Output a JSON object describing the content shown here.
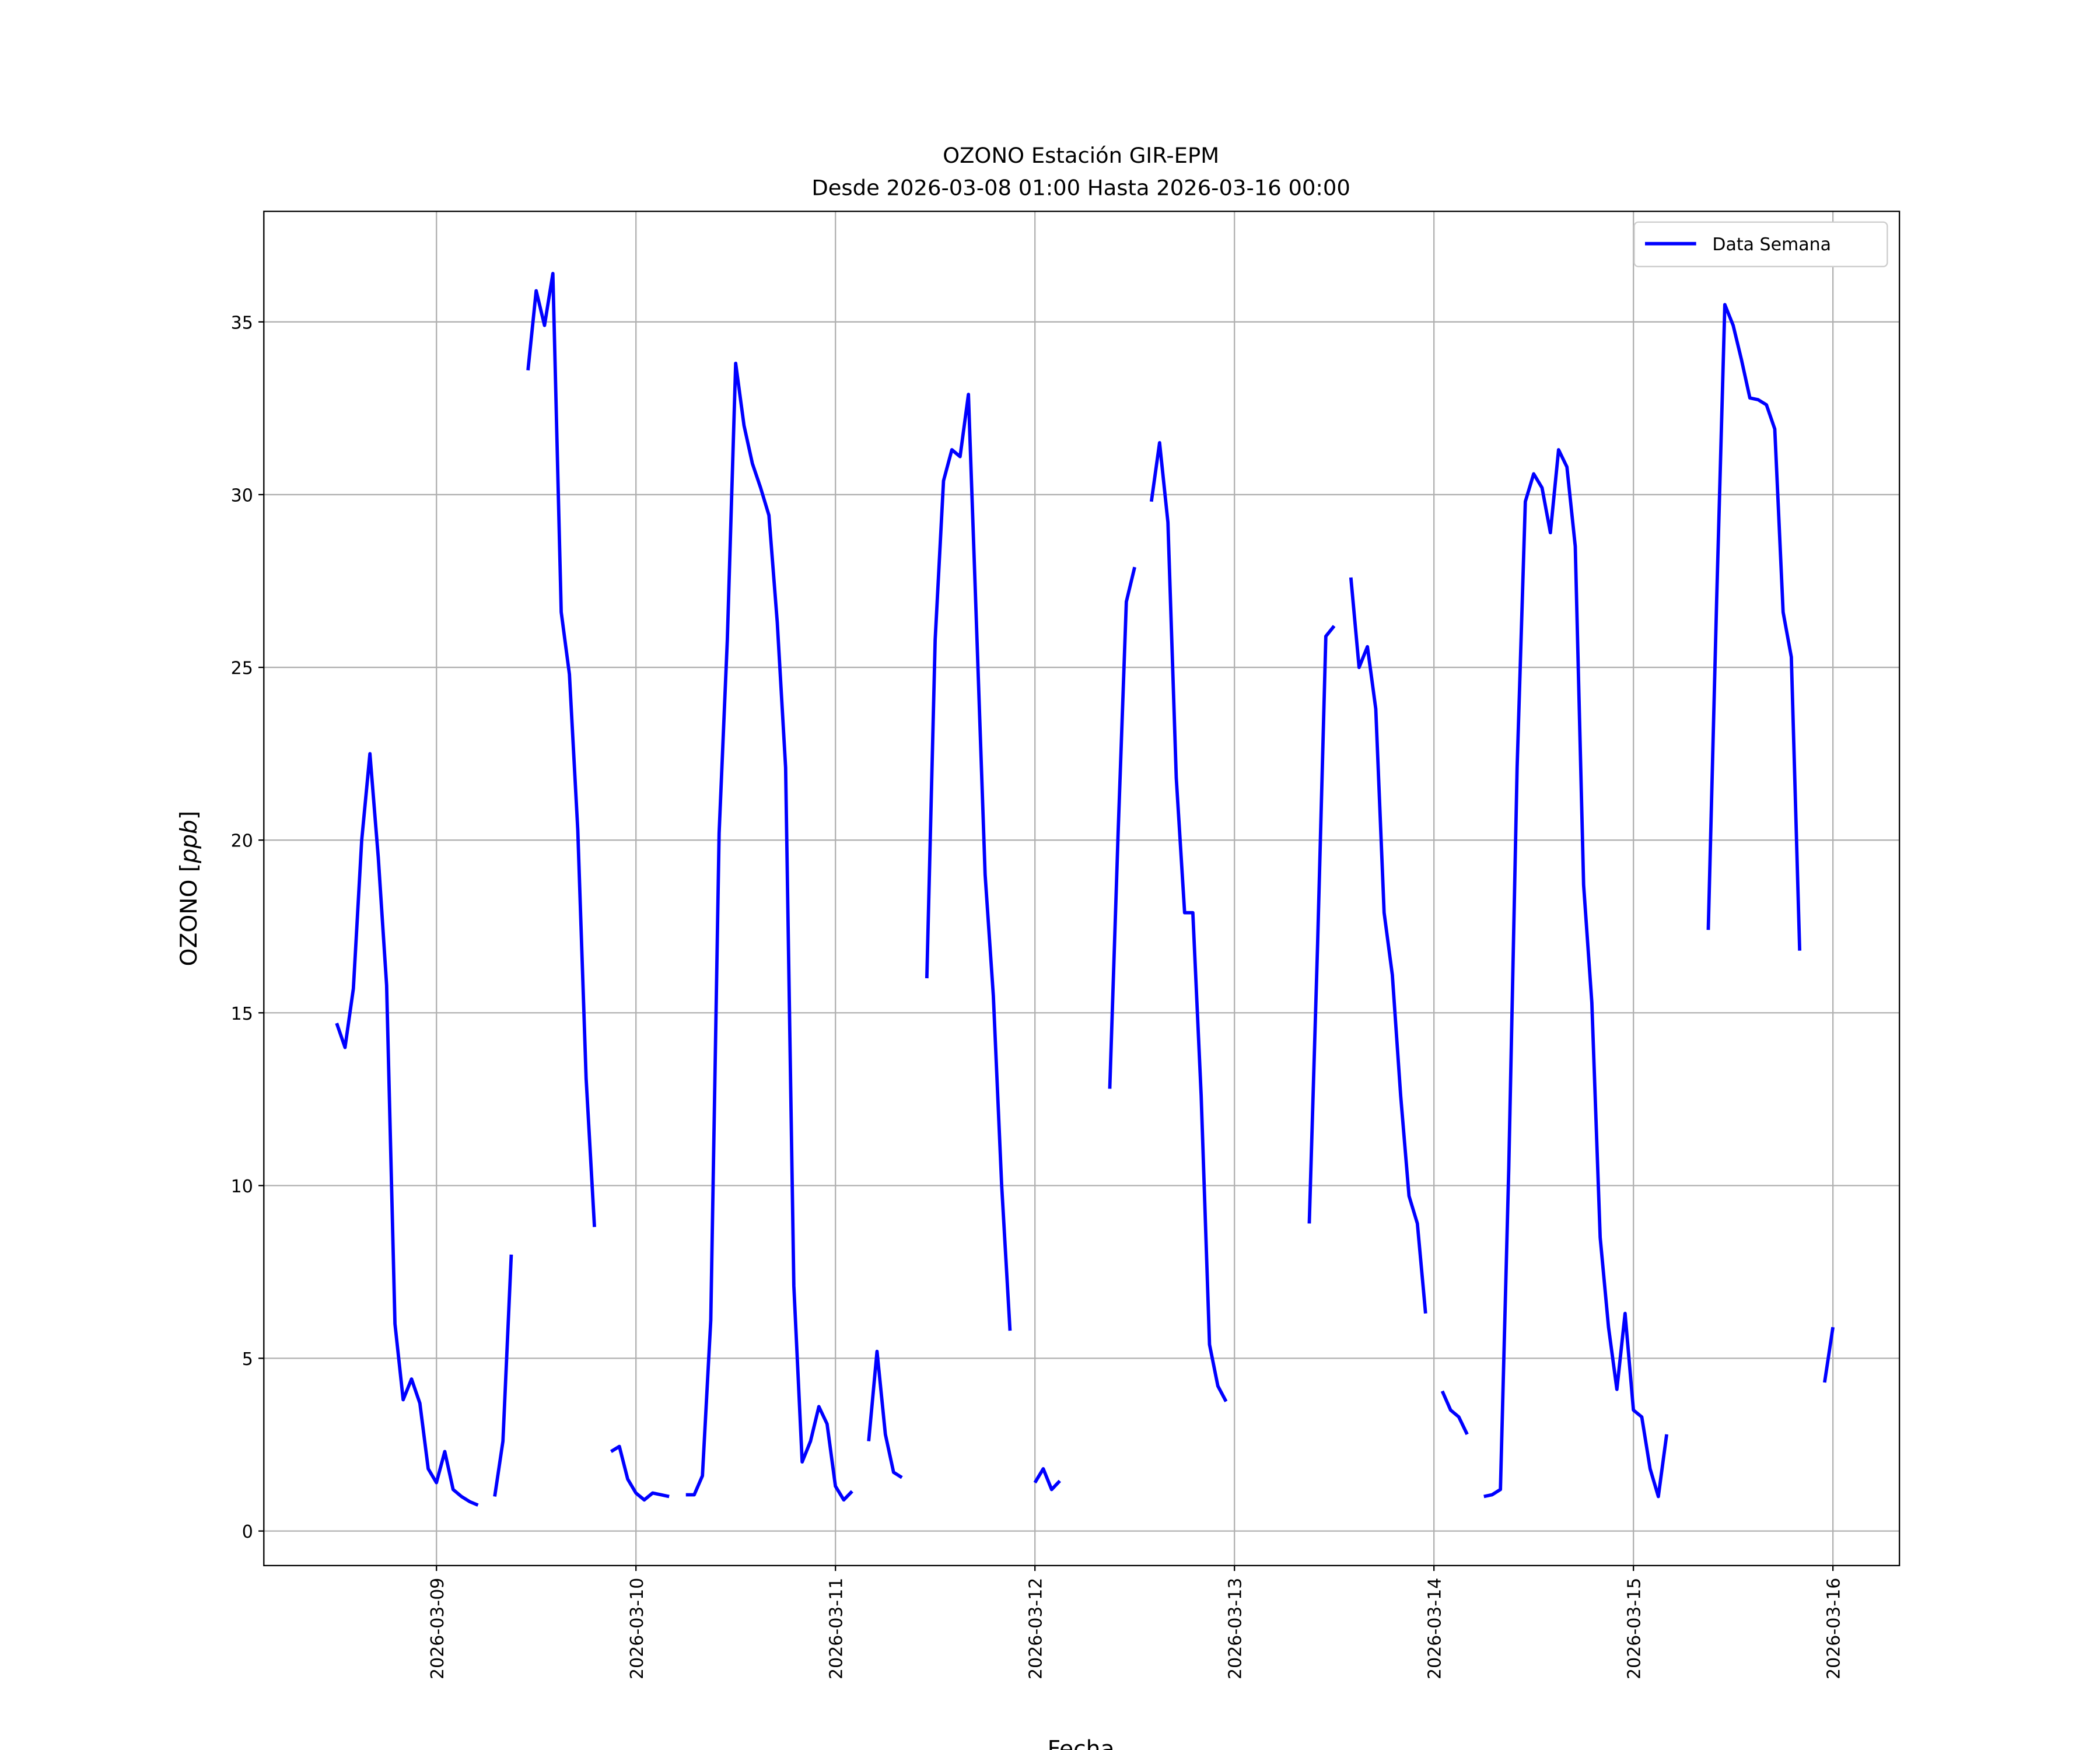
{
  "chart_data": {
    "type": "line",
    "title": "OZONO Estación GIR-EPM",
    "subtitle": "Desde 2026-03-08 01:00 Hasta 2026-03-16 00:00",
    "xlabel": "Fecha",
    "ylabel": "OZONO [ppb]",
    "ylim": [
      -1,
      38.2
    ],
    "xlim": [
      "2026-03-08T03:14",
      "2026-03-16T08:00"
    ],
    "yticks": [
      0,
      5,
      10,
      15,
      20,
      25,
      30,
      35
    ],
    "xticks": [
      "2026-03-09",
      "2026-03-10",
      "2026-03-11",
      "2026-03-12",
      "2026-03-13",
      "2026-03-14",
      "2026-03-15",
      "2026-03-16"
    ],
    "grid": true,
    "legend": "top-right",
    "colors": {
      "series": "#0000ff",
      "grid": "#b0b0b0"
    },
    "series": [
      {
        "name": "Data Semana",
        "x_start": "2026-03-08T12:00",
        "x_step_hours": 1,
        "y": [
          14.7,
          14.0,
          15.7,
          20.0,
          22.5,
          19.5,
          15.8,
          6.0,
          3.8,
          4.4,
          3.7,
          1.8,
          1.4,
          2.3,
          1.2,
          1.0,
          0.85,
          0.75,
          null,
          1.0,
          2.6,
          8.0,
          null,
          33.6,
          35.9,
          34.9,
          36.4,
          26.6,
          24.8,
          20.3,
          13.1,
          8.8,
          null,
          2.3,
          2.45,
          1.5,
          1.1,
          0.9,
          1.1,
          1.05,
          1.0,
          null,
          1.05,
          1.05,
          1.6,
          6.1,
          20.2,
          25.8,
          33.8,
          32.0,
          30.9,
          30.2,
          29.4,
          26.3,
          22.1,
          7.1,
          2.0,
          2.6,
          3.6,
          3.1,
          1.3,
          0.9,
          1.15,
          null,
          2.6,
          5.2,
          2.8,
          1.7,
          1.55,
          null,
          null,
          16.0,
          25.8,
          30.4,
          31.3,
          31.1,
          32.9,
          26.0,
          19.0,
          15.5,
          10.0,
          5.8,
          null,
          null,
          1.4,
          1.8,
          1.2,
          1.45,
          null,
          null,
          null,
          null,
          null,
          12.8,
          20.2,
          26.9,
          27.9,
          null,
          29.8,
          31.5,
          29.2,
          21.8,
          17.9,
          17.9,
          12.6,
          5.4,
          4.2,
          3.75,
          null,
          null,
          null,
          null,
          null,
          null,
          null,
          null,
          null,
          8.9,
          17.0,
          25.9,
          26.2,
          null,
          27.6,
          25.0,
          25.6,
          23.8,
          17.9,
          16.1,
          12.6,
          9.7,
          8.9,
          6.3,
          null,
          4.05,
          3.5,
          3.3,
          2.8,
          null,
          1.0,
          1.05,
          1.2,
          10.5,
          22.1,
          29.8,
          30.6,
          30.2,
          28.9,
          31.3,
          30.8,
          28.5,
          18.7,
          15.3,
          8.5,
          5.9,
          4.1,
          6.3,
          3.5,
          3.3,
          1.8,
          1.0,
          2.8,
          null,
          null,
          null,
          null,
          17.4,
          26.9,
          35.5,
          34.9,
          33.9,
          32.8,
          32.75,
          32.6,
          31.9,
          26.6,
          25.3,
          16.8,
          null,
          null,
          4.3,
          5.9
        ]
      }
    ]
  }
}
